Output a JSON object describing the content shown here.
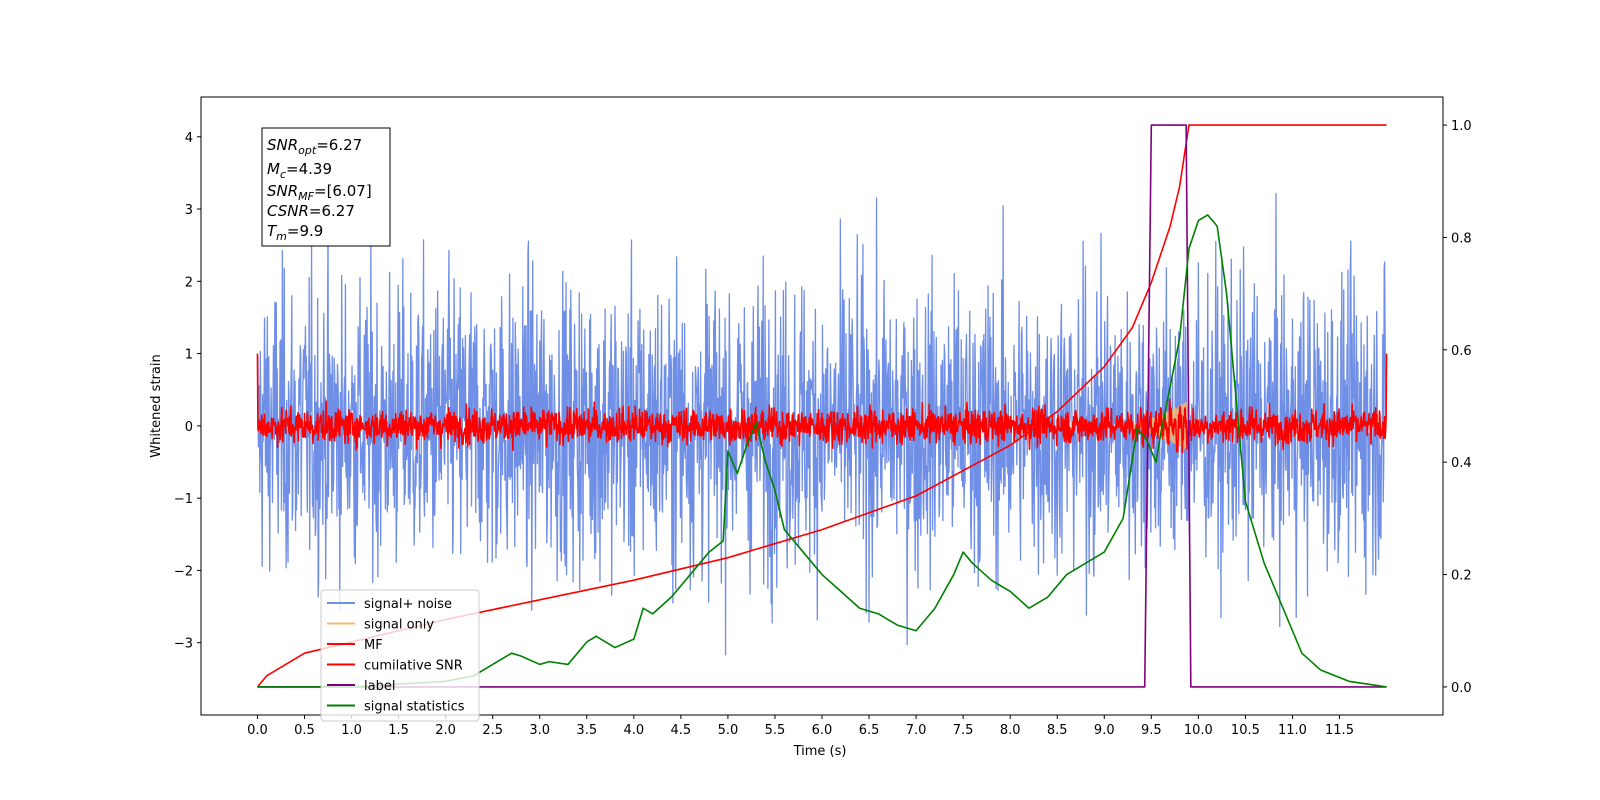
{
  "chart_data": {
    "type": "line",
    "title": "",
    "xlabel": "Time (s)",
    "ylabel": "Whitened strain",
    "ylabel_right": "",
    "xlim": [
      -0.6,
      12.6
    ],
    "ylim": [
      -4.0,
      4.55
    ],
    "ylim_right": [
      -0.05,
      1.05
    ],
    "x_ticks": [
      "0.0",
      "0.5",
      "1.0",
      "1.5",
      "2.0",
      "2.5",
      "3.0",
      "3.5",
      "4.0",
      "4.5",
      "5.0",
      "5.5",
      "6.0",
      "6.5",
      "7.0",
      "7.5",
      "8.0",
      "8.5",
      "9.0",
      "9.5",
      "10.0",
      "10.5",
      "11.0",
      "11.5"
    ],
    "y_ticks": [
      "−3",
      "−2",
      "−1",
      "0",
      "1",
      "2",
      "3",
      "4"
    ],
    "y_ticks_right": [
      "0.0",
      "0.2",
      "0.4",
      "0.6",
      "0.8",
      "1.0"
    ],
    "grid": false,
    "legend_position": "lower-left",
    "annotation": {
      "snr_opt": {
        "base": "SNR",
        "sub": "opt",
        "value": "=6.27"
      },
      "mc": {
        "base": "M",
        "sub": "c",
        "value": "=4.39"
      },
      "snr_mf": {
        "base": "SNR",
        "sub": "MF",
        "value": "=[6.07]"
      },
      "csnr": {
        "base": "CSNR",
        "sub": "",
        "value": "=6.27"
      },
      "tm": {
        "base": "T",
        "sub": "m",
        "value": "=9.9"
      }
    },
    "series": [
      {
        "name": "signal+ noise",
        "color": "#6f8ee6",
        "axis": "left",
        "kind": "noise",
        "std": 1.0,
        "x_range": [
          0,
          12.0
        ]
      },
      {
        "name": "signal only",
        "color": "#f5b971",
        "axis": "left",
        "kind": "chirp",
        "x_range": [
          9.2,
          9.9
        ]
      },
      {
        "name": "MF",
        "color": "#ff0000",
        "axis": "left",
        "kind": "noise",
        "std": 0.12,
        "x_range": [
          0,
          12.0
        ]
      },
      {
        "name": "cumilative SNR",
        "color": "#ff0000",
        "axis": "right",
        "kind": "curve",
        "x": [
          0.0,
          0.1,
          0.5,
          1.0,
          2.0,
          3.0,
          4.0,
          5.0,
          6.0,
          7.0,
          8.0,
          8.5,
          9.0,
          9.3,
          9.5,
          9.7,
          9.8,
          9.9,
          12.0
        ],
        "values": [
          0.0,
          0.02,
          0.06,
          0.08,
          0.12,
          0.155,
          0.19,
          0.23,
          0.28,
          0.34,
          0.43,
          0.49,
          0.57,
          0.64,
          0.72,
          0.82,
          0.89,
          1.0,
          1.0
        ]
      },
      {
        "name": "label",
        "color": "#800080",
        "axis": "right",
        "kind": "step",
        "x": [
          0.0,
          9.43,
          9.5,
          9.87,
          9.92,
          12.0
        ],
        "values": [
          0.0,
          0.0,
          1.0,
          1.0,
          0.0,
          0.0
        ]
      },
      {
        "name": "signal statistics",
        "color": "#008000",
        "axis": "right",
        "kind": "curve",
        "x": [
          0.0,
          1.0,
          2.0,
          2.3,
          2.5,
          2.7,
          2.8,
          3.0,
          3.1,
          3.3,
          3.5,
          3.6,
          3.8,
          4.0,
          4.1,
          4.2,
          4.4,
          4.6,
          4.8,
          4.95,
          5.0,
          5.1,
          5.2,
          5.3,
          5.4,
          5.5,
          5.6,
          5.8,
          6.0,
          6.2,
          6.4,
          6.6,
          6.8,
          7.0,
          7.2,
          7.4,
          7.5,
          7.6,
          7.8,
          8.0,
          8.2,
          8.4,
          8.6,
          8.8,
          9.0,
          9.2,
          9.35,
          9.45,
          9.55,
          9.6,
          9.8,
          9.9,
          10.0,
          10.1,
          10.2,
          10.3,
          10.5,
          10.7,
          10.9,
          11.1,
          11.3,
          11.6,
          12.0
        ],
        "values": [
          0.0,
          0.0,
          0.01,
          0.02,
          0.04,
          0.06,
          0.055,
          0.04,
          0.045,
          0.04,
          0.08,
          0.09,
          0.07,
          0.085,
          0.14,
          0.13,
          0.16,
          0.2,
          0.24,
          0.26,
          0.42,
          0.38,
          0.43,
          0.47,
          0.4,
          0.35,
          0.28,
          0.24,
          0.2,
          0.17,
          0.14,
          0.13,
          0.11,
          0.1,
          0.14,
          0.2,
          0.24,
          0.22,
          0.19,
          0.17,
          0.14,
          0.16,
          0.2,
          0.22,
          0.24,
          0.3,
          0.46,
          0.44,
          0.4,
          0.45,
          0.62,
          0.78,
          0.83,
          0.84,
          0.82,
          0.7,
          0.33,
          0.22,
          0.14,
          0.06,
          0.03,
          0.01,
          0.0
        ]
      }
    ]
  }
}
